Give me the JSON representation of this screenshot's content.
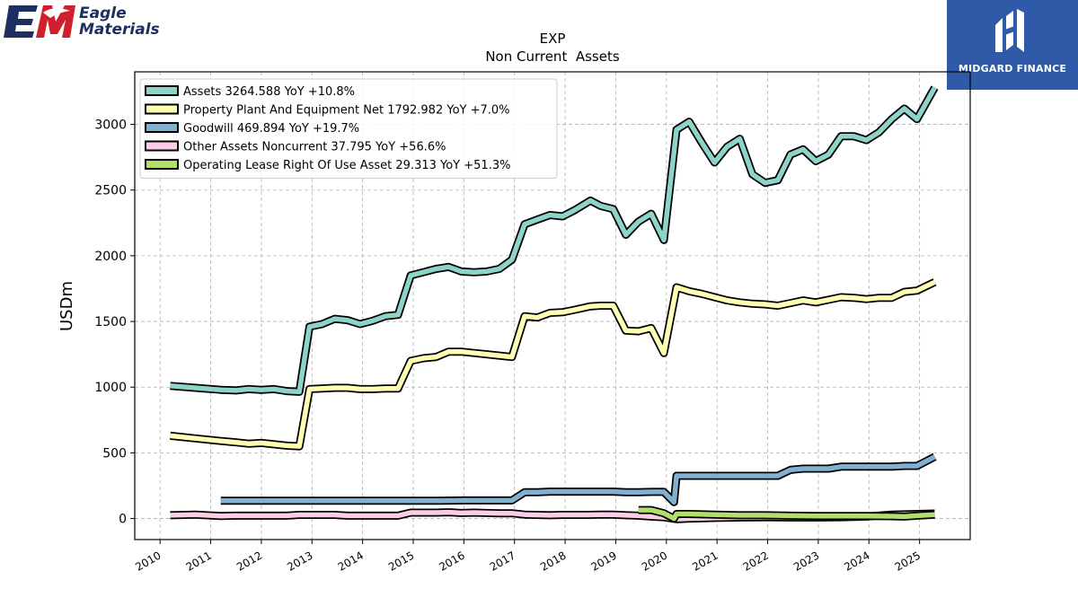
{
  "logos": {
    "left_line1": "Eagle",
    "left_line2": "Materials",
    "right_brand": "MIDGARD FINANCE"
  },
  "colors": {
    "assets": "#8dd3c7",
    "ppe": "#ffffb3",
    "goodwill": "#80b1d3",
    "other": "#fccde5",
    "lease": "#b3de69",
    "outline": "#000000",
    "grid": "#b0b0b0",
    "brand_red": "#d0202e",
    "brand_navy": "#1c2f5e",
    "brand_blue": "#2f5aa8"
  },
  "chart_data": {
    "type": "line",
    "title": "EXP",
    "subtitle": "Non Current  Assets",
    "ylabel": "USDm",
    "xlabel": "",
    "xlim": [
      2009.5,
      2026.0
    ],
    "ylim": [
      -160,
      3400
    ],
    "x_ticks": [
      2010,
      2011,
      2012,
      2013,
      2014,
      2015,
      2016,
      2017,
      2018,
      2019,
      2020,
      2021,
      2022,
      2023,
      2024,
      2025
    ],
    "y_ticks": [
      0,
      500,
      1000,
      1500,
      2000,
      2500,
      3000
    ],
    "grid": true,
    "legend_position": "top-left",
    "series": [
      {
        "name": "Assets  3264.588 YoY +10.8%",
        "color_key": "assets",
        "points": [
          [
            2010.2,
            1010
          ],
          [
            2010.7,
            995
          ],
          [
            2011.2,
            980
          ],
          [
            2011.5,
            975
          ],
          [
            2011.75,
            985
          ],
          [
            2012.0,
            980
          ],
          [
            2012.25,
            985
          ],
          [
            2012.5,
            970
          ],
          [
            2012.75,
            965
          ],
          [
            2012.95,
            1460
          ],
          [
            2013.2,
            1480
          ],
          [
            2013.45,
            1520
          ],
          [
            2013.7,
            1510
          ],
          [
            2013.95,
            1480
          ],
          [
            2014.2,
            1505
          ],
          [
            2014.45,
            1540
          ],
          [
            2014.7,
            1550
          ],
          [
            2014.95,
            1850
          ],
          [
            2015.2,
            1875
          ],
          [
            2015.45,
            1900
          ],
          [
            2015.7,
            1915
          ],
          [
            2015.95,
            1880
          ],
          [
            2016.2,
            1875
          ],
          [
            2016.45,
            1880
          ],
          [
            2016.7,
            1900
          ],
          [
            2016.95,
            1970
          ],
          [
            2017.2,
            2240
          ],
          [
            2017.45,
            2275
          ],
          [
            2017.7,
            2310
          ],
          [
            2017.95,
            2300
          ],
          [
            2018.2,
            2350
          ],
          [
            2018.5,
            2420
          ],
          [
            2018.7,
            2380
          ],
          [
            2018.95,
            2355
          ],
          [
            2019.2,
            2160
          ],
          [
            2019.45,
            2260
          ],
          [
            2019.7,
            2320
          ],
          [
            2019.95,
            2120
          ],
          [
            2020.2,
            2960
          ],
          [
            2020.45,
            3020
          ],
          [
            2020.7,
            2860
          ],
          [
            2020.95,
            2710
          ],
          [
            2021.2,
            2830
          ],
          [
            2021.45,
            2890
          ],
          [
            2021.7,
            2620
          ],
          [
            2021.95,
            2555
          ],
          [
            2022.2,
            2575
          ],
          [
            2022.45,
            2770
          ],
          [
            2022.7,
            2810
          ],
          [
            2022.95,
            2720
          ],
          [
            2023.2,
            2770
          ],
          [
            2023.45,
            2910
          ],
          [
            2023.7,
            2910
          ],
          [
            2023.95,
            2880
          ],
          [
            2024.2,
            2940
          ],
          [
            2024.45,
            3040
          ],
          [
            2024.7,
            3120
          ],
          [
            2024.95,
            3040
          ],
          [
            2025.3,
            3280
          ]
        ]
      },
      {
        "name": "Property Plant And Equipment Net  1792.982 YoY +7.0%",
        "color_key": "ppe",
        "points": [
          [
            2010.2,
            630
          ],
          [
            2010.7,
            610
          ],
          [
            2011.2,
            590
          ],
          [
            2011.5,
            580
          ],
          [
            2011.75,
            570
          ],
          [
            2012.0,
            575
          ],
          [
            2012.25,
            565
          ],
          [
            2012.5,
            555
          ],
          [
            2012.75,
            550
          ],
          [
            2012.95,
            985
          ],
          [
            2013.2,
            990
          ],
          [
            2013.45,
            995
          ],
          [
            2013.7,
            995
          ],
          [
            2013.95,
            985
          ],
          [
            2014.2,
            985
          ],
          [
            2014.45,
            990
          ],
          [
            2014.7,
            990
          ],
          [
            2014.95,
            1200
          ],
          [
            2015.2,
            1220
          ],
          [
            2015.45,
            1230
          ],
          [
            2015.7,
            1270
          ],
          [
            2015.95,
            1270
          ],
          [
            2016.2,
            1260
          ],
          [
            2016.45,
            1250
          ],
          [
            2016.7,
            1240
          ],
          [
            2016.95,
            1230
          ],
          [
            2017.2,
            1540
          ],
          [
            2017.45,
            1530
          ],
          [
            2017.7,
            1565
          ],
          [
            2017.95,
            1570
          ],
          [
            2018.2,
            1590
          ],
          [
            2018.5,
            1615
          ],
          [
            2018.7,
            1620
          ],
          [
            2018.95,
            1620
          ],
          [
            2019.2,
            1430
          ],
          [
            2019.45,
            1425
          ],
          [
            2019.7,
            1450
          ],
          [
            2019.95,
            1260
          ],
          [
            2020.2,
            1760
          ],
          [
            2020.45,
            1730
          ],
          [
            2020.7,
            1710
          ],
          [
            2020.95,
            1685
          ],
          [
            2021.2,
            1660
          ],
          [
            2021.45,
            1645
          ],
          [
            2021.7,
            1635
          ],
          [
            2021.95,
            1630
          ],
          [
            2022.2,
            1620
          ],
          [
            2022.45,
            1640
          ],
          [
            2022.7,
            1660
          ],
          [
            2022.95,
            1645
          ],
          [
            2023.2,
            1665
          ],
          [
            2023.45,
            1685
          ],
          [
            2023.7,
            1680
          ],
          [
            2023.95,
            1670
          ],
          [
            2024.2,
            1680
          ],
          [
            2024.45,
            1680
          ],
          [
            2024.7,
            1725
          ],
          [
            2024.95,
            1735
          ],
          [
            2025.3,
            1800
          ]
        ]
      },
      {
        "name": "Goodwill  469.894 YoY +19.7%",
        "color_key": "goodwill",
        "points": [
          [
            2011.2,
            135
          ],
          [
            2011.5,
            135
          ],
          [
            2012.0,
            135
          ],
          [
            2012.5,
            135
          ],
          [
            2013.0,
            135
          ],
          [
            2013.5,
            135
          ],
          [
            2014.0,
            135
          ],
          [
            2014.5,
            135
          ],
          [
            2015.0,
            135
          ],
          [
            2015.5,
            135
          ],
          [
            2016.0,
            138
          ],
          [
            2016.5,
            138
          ],
          [
            2016.95,
            138
          ],
          [
            2017.2,
            200
          ],
          [
            2017.45,
            200
          ],
          [
            2017.7,
            205
          ],
          [
            2017.95,
            205
          ],
          [
            2018.2,
            205
          ],
          [
            2018.5,
            205
          ],
          [
            2018.95,
            205
          ],
          [
            2019.2,
            200
          ],
          [
            2019.45,
            200
          ],
          [
            2019.7,
            203
          ],
          [
            2019.95,
            203
          ],
          [
            2020.15,
            125
          ],
          [
            2020.2,
            325
          ],
          [
            2020.45,
            325
          ],
          [
            2020.7,
            325
          ],
          [
            2021.0,
            325
          ],
          [
            2021.5,
            325
          ],
          [
            2022.0,
            325
          ],
          [
            2022.2,
            325
          ],
          [
            2022.45,
            370
          ],
          [
            2022.7,
            380
          ],
          [
            2022.95,
            380
          ],
          [
            2023.2,
            380
          ],
          [
            2023.45,
            395
          ],
          [
            2023.7,
            395
          ],
          [
            2023.95,
            395
          ],
          [
            2024.2,
            395
          ],
          [
            2024.45,
            395
          ],
          [
            2024.7,
            400
          ],
          [
            2024.95,
            400
          ],
          [
            2025.3,
            470
          ]
        ]
      },
      {
        "name": "Other Assets Noncurrent  37.795 YoY +56.6%",
        "color_key": "other",
        "points": [
          [
            2010.2,
            25
          ],
          [
            2010.7,
            30
          ],
          [
            2011.2,
            20
          ],
          [
            2011.5,
            22
          ],
          [
            2012.0,
            22
          ],
          [
            2012.5,
            22
          ],
          [
            2012.75,
            28
          ],
          [
            2013.2,
            28
          ],
          [
            2013.45,
            28
          ],
          [
            2013.7,
            22
          ],
          [
            2014.2,
            22
          ],
          [
            2014.7,
            22
          ],
          [
            2014.95,
            45
          ],
          [
            2015.2,
            45
          ],
          [
            2015.45,
            45
          ],
          [
            2015.7,
            48
          ],
          [
            2015.95,
            42
          ],
          [
            2016.2,
            45
          ],
          [
            2016.45,
            42
          ],
          [
            2016.7,
            40
          ],
          [
            2016.95,
            40
          ],
          [
            2017.2,
            30
          ],
          [
            2017.7,
            25
          ],
          [
            2017.95,
            28
          ],
          [
            2018.45,
            28
          ],
          [
            2018.7,
            30
          ],
          [
            2018.95,
            30
          ],
          [
            2019.2,
            25
          ],
          [
            2019.45,
            22
          ],
          [
            2019.7,
            15
          ],
          [
            2019.95,
            10
          ],
          [
            2020.2,
            -5
          ],
          [
            2020.45,
            0
          ],
          [
            2020.95,
            5
          ],
          [
            2021.45,
            8
          ],
          [
            2022.0,
            10
          ],
          [
            2022.45,
            8
          ],
          [
            2022.95,
            8
          ],
          [
            2023.45,
            10
          ],
          [
            2023.95,
            15
          ],
          [
            2024.45,
            30
          ],
          [
            2024.95,
            35
          ],
          [
            2025.3,
            38
          ]
        ]
      },
      {
        "name": "Operating Lease Right Of Use Asset  29.313 YoY +51.3%",
        "color_key": "lease",
        "points": [
          [
            2019.45,
            65
          ],
          [
            2019.7,
            65
          ],
          [
            2019.95,
            40
          ],
          [
            2020.15,
            0
          ],
          [
            2020.2,
            35
          ],
          [
            2020.45,
            35
          ],
          [
            2020.95,
            30
          ],
          [
            2021.45,
            25
          ],
          [
            2021.95,
            25
          ],
          [
            2022.45,
            22
          ],
          [
            2022.95,
            20
          ],
          [
            2023.45,
            20
          ],
          [
            2023.95,
            20
          ],
          [
            2024.45,
            18
          ],
          [
            2024.7,
            15
          ],
          [
            2024.95,
            22
          ],
          [
            2025.3,
            29
          ]
        ]
      }
    ]
  }
}
